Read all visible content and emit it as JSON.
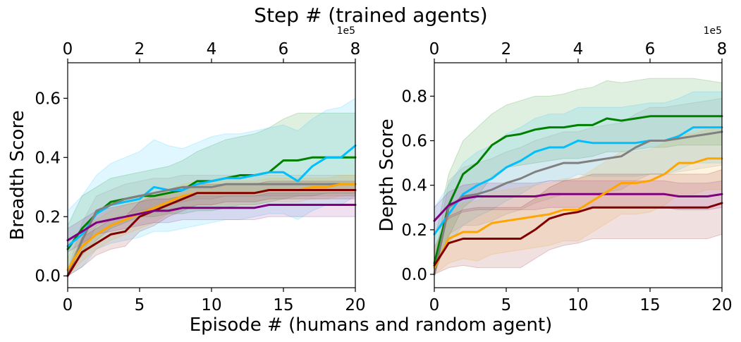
{
  "figure": {
    "top_title": "Step # (trained agents)",
    "bottom_title": "Episode # (humans and random agent)"
  },
  "chart_data": [
    {
      "type": "line",
      "id": "breadth",
      "ylabel": "Breadth Score",
      "xlim": [
        0,
        20
      ],
      "ylim": [
        -0.04,
        0.72
      ],
      "x_ticks": [
        0,
        5,
        10,
        15,
        20
      ],
      "x_tick_labels": [
        "0",
        "5",
        "10",
        "15",
        "20"
      ],
      "y_ticks": [
        0.0,
        0.2,
        0.4,
        0.6
      ],
      "y_tick_labels": [
        "0.0",
        "0.2",
        "0.4",
        "0.6"
      ],
      "top_axis": {
        "ticks": [
          "0",
          "2",
          "4",
          "6",
          "8"
        ],
        "offset_label": "1e5"
      },
      "x": [
        0,
        1,
        2,
        3,
        4,
        5,
        6,
        7,
        8,
        9,
        10,
        11,
        12,
        13,
        14,
        15,
        16,
        17,
        18,
        19,
        20
      ],
      "series": [
        {
          "name": "green",
          "color": "#008000",
          "values": [
            0.09,
            0.16,
            0.21,
            0.25,
            0.26,
            0.27,
            0.27,
            0.28,
            0.29,
            0.32,
            0.32,
            0.33,
            0.34,
            0.34,
            0.35,
            0.39,
            0.39,
            0.4,
            0.4,
            0.4,
            0.4
          ],
          "upper": [
            0.17,
            0.27,
            0.3,
            0.33,
            0.34,
            0.35,
            0.36,
            0.37,
            0.39,
            0.42,
            0.44,
            0.46,
            0.47,
            0.48,
            0.5,
            0.53,
            0.55,
            0.55,
            0.55,
            0.55,
            0.55
          ],
          "lower": [
            0.01,
            0.07,
            0.12,
            0.16,
            0.18,
            0.2,
            0.2,
            0.21,
            0.21,
            0.22,
            0.22,
            0.23,
            0.24,
            0.24,
            0.25,
            0.26,
            0.27,
            0.27,
            0.28,
            0.28,
            0.28
          ]
        },
        {
          "name": "cyan",
          "color": "#00bfff",
          "values": [
            0.1,
            0.14,
            0.21,
            0.24,
            0.25,
            0.26,
            0.3,
            0.29,
            0.29,
            0.31,
            0.32,
            0.33,
            0.33,
            0.34,
            0.35,
            0.35,
            0.32,
            0.37,
            0.4,
            0.4,
            0.44
          ],
          "upper": [
            0.22,
            0.27,
            0.34,
            0.38,
            0.4,
            0.42,
            0.46,
            0.44,
            0.43,
            0.45,
            0.47,
            0.48,
            0.48,
            0.49,
            0.5,
            0.51,
            0.49,
            0.53,
            0.56,
            0.57,
            0.6
          ],
          "lower": [
            0.0,
            0.03,
            0.09,
            0.11,
            0.12,
            0.13,
            0.15,
            0.15,
            0.16,
            0.17,
            0.18,
            0.19,
            0.19,
            0.2,
            0.21,
            0.21,
            0.19,
            0.22,
            0.24,
            0.24,
            0.27
          ]
        },
        {
          "name": "gray",
          "color": "#808080",
          "values": [
            0.0,
            0.12,
            0.22,
            0.24,
            0.26,
            0.27,
            0.28,
            0.29,
            0.3,
            0.3,
            0.3,
            0.31,
            0.31,
            0.31,
            0.31,
            0.31,
            0.31,
            0.31,
            0.31,
            0.31,
            0.31
          ],
          "upper": [
            0.02,
            0.18,
            0.27,
            0.29,
            0.31,
            0.32,
            0.33,
            0.33,
            0.34,
            0.34,
            0.34,
            0.34,
            0.34,
            0.34,
            0.34,
            0.34,
            0.34,
            0.34,
            0.34,
            0.34,
            0.34
          ],
          "lower": [
            0.0,
            0.07,
            0.17,
            0.19,
            0.21,
            0.22,
            0.23,
            0.24,
            0.25,
            0.26,
            0.26,
            0.27,
            0.27,
            0.27,
            0.27,
            0.27,
            0.27,
            0.27,
            0.27,
            0.27,
            0.27
          ]
        },
        {
          "name": "orange",
          "color": "#ffa500",
          "values": [
            0.02,
            0.1,
            0.14,
            0.17,
            0.19,
            0.21,
            0.23,
            0.25,
            0.27,
            0.28,
            0.28,
            0.28,
            0.28,
            0.28,
            0.29,
            0.29,
            0.29,
            0.3,
            0.3,
            0.31,
            0.31
          ],
          "upper": [
            0.06,
            0.15,
            0.19,
            0.22,
            0.24,
            0.26,
            0.27,
            0.29,
            0.31,
            0.32,
            0.32,
            0.32,
            0.32,
            0.32,
            0.33,
            0.33,
            0.33,
            0.33,
            0.33,
            0.34,
            0.34
          ],
          "lower": [
            0.0,
            0.05,
            0.09,
            0.12,
            0.14,
            0.16,
            0.18,
            0.21,
            0.23,
            0.24,
            0.24,
            0.24,
            0.24,
            0.24,
            0.25,
            0.25,
            0.25,
            0.26,
            0.26,
            0.27,
            0.27
          ]
        },
        {
          "name": "darkred",
          "color": "#800000",
          "values": [
            0.0,
            0.08,
            0.11,
            0.14,
            0.15,
            0.2,
            0.22,
            0.24,
            0.26,
            0.28,
            0.28,
            0.28,
            0.28,
            0.28,
            0.29,
            0.29,
            0.29,
            0.29,
            0.29,
            0.29,
            0.29
          ],
          "upper": [
            0.02,
            0.13,
            0.16,
            0.19,
            0.2,
            0.25,
            0.27,
            0.28,
            0.3,
            0.31,
            0.31,
            0.31,
            0.31,
            0.31,
            0.32,
            0.32,
            0.32,
            0.32,
            0.32,
            0.32,
            0.32
          ],
          "lower": [
            0.0,
            0.03,
            0.07,
            0.09,
            0.1,
            0.15,
            0.17,
            0.2,
            0.22,
            0.24,
            0.24,
            0.25,
            0.25,
            0.25,
            0.26,
            0.26,
            0.26,
            0.26,
            0.26,
            0.26,
            0.26
          ]
        },
        {
          "name": "purple",
          "color": "#800080",
          "values": [
            0.12,
            0.15,
            0.18,
            0.19,
            0.2,
            0.21,
            0.22,
            0.22,
            0.23,
            0.23,
            0.23,
            0.23,
            0.23,
            0.23,
            0.24,
            0.24,
            0.24,
            0.24,
            0.24,
            0.24,
            0.24
          ],
          "upper": [
            0.16,
            0.19,
            0.22,
            0.23,
            0.24,
            0.25,
            0.26,
            0.26,
            0.27,
            0.27,
            0.27,
            0.27,
            0.27,
            0.27,
            0.28,
            0.28,
            0.28,
            0.28,
            0.28,
            0.28,
            0.28
          ],
          "lower": [
            0.08,
            0.11,
            0.14,
            0.15,
            0.16,
            0.17,
            0.18,
            0.18,
            0.19,
            0.19,
            0.19,
            0.19,
            0.19,
            0.19,
            0.2,
            0.2,
            0.2,
            0.2,
            0.2,
            0.2,
            0.2
          ]
        }
      ]
    },
    {
      "type": "line",
      "id": "depth",
      "ylabel": "Depth Score",
      "xlim": [
        0,
        20
      ],
      "ylim": [
        -0.06,
        0.95
      ],
      "x_ticks": [
        0,
        5,
        10,
        15,
        20
      ],
      "x_tick_labels": [
        "0",
        "5",
        "10",
        "15",
        "20"
      ],
      "y_ticks": [
        0.0,
        0.2,
        0.4,
        0.6,
        0.8
      ],
      "y_tick_labels": [
        "0.0",
        "0.2",
        "0.4",
        "0.6",
        "0.8"
      ],
      "top_axis": {
        "ticks": [
          "0",
          "2",
          "4",
          "6",
          "8"
        ],
        "offset_label": "1e5"
      },
      "x": [
        0,
        1,
        2,
        3,
        4,
        5,
        6,
        7,
        8,
        9,
        10,
        11,
        12,
        13,
        14,
        15,
        16,
        17,
        18,
        19,
        20
      ],
      "series": [
        {
          "name": "green",
          "color": "#008000",
          "values": [
            0.05,
            0.31,
            0.45,
            0.5,
            0.58,
            0.62,
            0.63,
            0.65,
            0.66,
            0.66,
            0.67,
            0.67,
            0.7,
            0.69,
            0.7,
            0.71,
            0.71,
            0.71,
            0.71,
            0.71,
            0.71
          ],
          "upper": [
            0.15,
            0.45,
            0.6,
            0.66,
            0.72,
            0.76,
            0.78,
            0.8,
            0.8,
            0.81,
            0.83,
            0.84,
            0.87,
            0.86,
            0.87,
            0.88,
            0.88,
            0.88,
            0.88,
            0.87,
            0.86
          ],
          "lower": [
            0.0,
            0.17,
            0.3,
            0.35,
            0.44,
            0.48,
            0.49,
            0.5,
            0.51,
            0.52,
            0.52,
            0.53,
            0.55,
            0.55,
            0.56,
            0.57,
            0.57,
            0.58,
            0.58,
            0.58,
            0.58
          ]
        },
        {
          "name": "cyan",
          "color": "#00bfff",
          "values": [
            0.18,
            0.27,
            0.36,
            0.4,
            0.43,
            0.48,
            0.51,
            0.55,
            0.57,
            0.57,
            0.6,
            0.59,
            0.59,
            0.59,
            0.59,
            0.6,
            0.6,
            0.62,
            0.66,
            0.66,
            0.66
          ],
          "upper": [
            0.3,
            0.4,
            0.5,
            0.55,
            0.58,
            0.63,
            0.66,
            0.7,
            0.72,
            0.72,
            0.75,
            0.75,
            0.75,
            0.75,
            0.76,
            0.77,
            0.77,
            0.79,
            0.82,
            0.82,
            0.82
          ],
          "lower": [
            0.06,
            0.14,
            0.22,
            0.26,
            0.29,
            0.33,
            0.36,
            0.4,
            0.42,
            0.42,
            0.45,
            0.44,
            0.44,
            0.44,
            0.44,
            0.45,
            0.45,
            0.47,
            0.5,
            0.5,
            0.5
          ]
        },
        {
          "name": "gray",
          "color": "#808080",
          "values": [
            0.0,
            0.3,
            0.35,
            0.36,
            0.38,
            0.41,
            0.43,
            0.46,
            0.48,
            0.5,
            0.5,
            0.51,
            0.52,
            0.53,
            0.57,
            0.6,
            0.6,
            0.61,
            0.62,
            0.63,
            0.64
          ],
          "upper": [
            0.05,
            0.42,
            0.48,
            0.5,
            0.52,
            0.55,
            0.57,
            0.6,
            0.62,
            0.64,
            0.64,
            0.66,
            0.67,
            0.68,
            0.72,
            0.75,
            0.75,
            0.76,
            0.77,
            0.78,
            0.79
          ],
          "lower": [
            0.0,
            0.18,
            0.22,
            0.22,
            0.24,
            0.27,
            0.29,
            0.32,
            0.34,
            0.36,
            0.36,
            0.36,
            0.37,
            0.38,
            0.42,
            0.45,
            0.45,
            0.46,
            0.47,
            0.48,
            0.49
          ]
        },
        {
          "name": "purple",
          "color": "#800080",
          "values": [
            0.24,
            0.31,
            0.34,
            0.35,
            0.35,
            0.35,
            0.35,
            0.35,
            0.36,
            0.36,
            0.36,
            0.36,
            0.36,
            0.36,
            0.36,
            0.36,
            0.36,
            0.35,
            0.35,
            0.35,
            0.36
          ],
          "upper": [
            0.3,
            0.37,
            0.4,
            0.41,
            0.41,
            0.41,
            0.41,
            0.41,
            0.42,
            0.42,
            0.42,
            0.42,
            0.42,
            0.42,
            0.42,
            0.42,
            0.42,
            0.41,
            0.41,
            0.41,
            0.42
          ],
          "lower": [
            0.18,
            0.25,
            0.28,
            0.29,
            0.29,
            0.29,
            0.29,
            0.29,
            0.3,
            0.3,
            0.3,
            0.3,
            0.3,
            0.3,
            0.3,
            0.3,
            0.3,
            0.29,
            0.29,
            0.29,
            0.3
          ]
        },
        {
          "name": "orange",
          "color": "#ffa500",
          "values": [
            0.03,
            0.16,
            0.19,
            0.19,
            0.23,
            0.24,
            0.25,
            0.26,
            0.27,
            0.29,
            0.29,
            0.33,
            0.37,
            0.41,
            0.41,
            0.42,
            0.45,
            0.5,
            0.5,
            0.52,
            0.52
          ],
          "upper": [
            0.1,
            0.28,
            0.32,
            0.33,
            0.37,
            0.38,
            0.39,
            0.4,
            0.41,
            0.43,
            0.43,
            0.47,
            0.51,
            0.55,
            0.55,
            0.56,
            0.59,
            0.63,
            0.63,
            0.65,
            0.65
          ],
          "lower": [
            0.0,
            0.05,
            0.07,
            0.06,
            0.09,
            0.1,
            0.11,
            0.12,
            0.13,
            0.15,
            0.15,
            0.19,
            0.23,
            0.27,
            0.27,
            0.28,
            0.31,
            0.36,
            0.36,
            0.38,
            0.38
          ]
        },
        {
          "name": "darkred",
          "color": "#800000",
          "values": [
            0.04,
            0.14,
            0.16,
            0.16,
            0.16,
            0.16,
            0.16,
            0.2,
            0.25,
            0.27,
            0.28,
            0.3,
            0.3,
            0.3,
            0.3,
            0.3,
            0.3,
            0.3,
            0.3,
            0.3,
            0.32
          ],
          "upper": [
            0.12,
            0.26,
            0.29,
            0.3,
            0.3,
            0.3,
            0.3,
            0.34,
            0.39,
            0.42,
            0.43,
            0.45,
            0.45,
            0.45,
            0.45,
            0.45,
            0.45,
            0.45,
            0.45,
            0.45,
            0.47
          ],
          "lower": [
            0.0,
            0.03,
            0.04,
            0.03,
            0.03,
            0.03,
            0.03,
            0.07,
            0.11,
            0.13,
            0.14,
            0.16,
            0.16,
            0.16,
            0.16,
            0.16,
            0.16,
            0.16,
            0.16,
            0.16,
            0.18
          ]
        }
      ]
    }
  ]
}
